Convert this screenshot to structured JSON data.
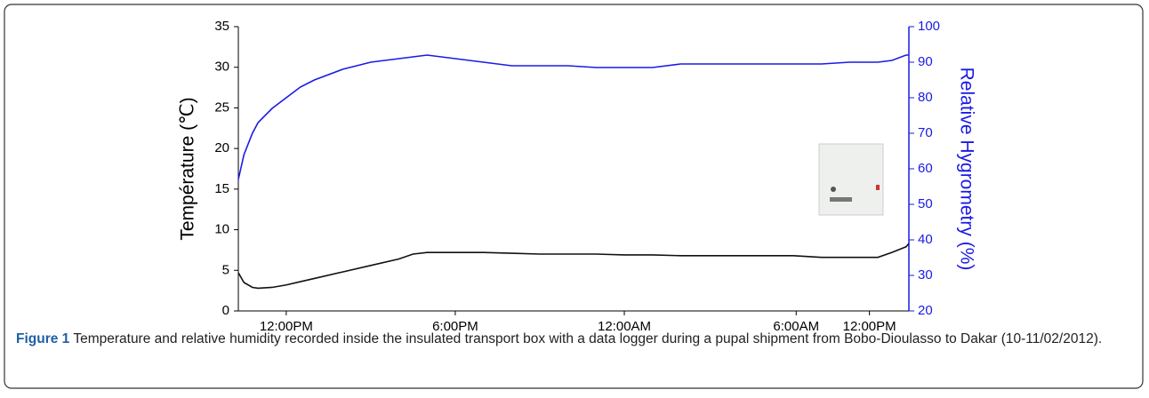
{
  "chart_data": {
    "type": "line",
    "x": [
      10.3,
      10.5,
      10.8,
      11,
      11.5,
      12,
      12.5,
      13,
      14,
      15,
      16,
      16.5,
      17,
      18,
      19,
      20,
      21,
      22,
      23,
      24,
      25,
      26,
      27,
      28,
      29,
      30,
      31,
      32,
      33,
      33.5,
      34,
      34.1
    ],
    "xlim": [
      10.3,
      34.1
    ],
    "xticks": [
      {
        "value": 12,
        "label": "12:00PM"
      },
      {
        "value": 18,
        "label": "6:00PM"
      },
      {
        "value": 24,
        "label": "12:00AM"
      },
      {
        "value": 30.1,
        "label": "6:00AM"
      },
      {
        "value": 32.7,
        "label": "12:00PM"
      }
    ],
    "ylabel": "Température (℃)",
    "y2label": "Relative Hygrometry (%)",
    "ylim": [
      0,
      35
    ],
    "yticks": [
      0,
      5,
      10,
      15,
      20,
      25,
      30,
      35
    ],
    "y2lim": [
      20,
      100
    ],
    "y2ticks": [
      20,
      30,
      40,
      50,
      60,
      70,
      80,
      90,
      100
    ],
    "y2color": "#1a1ae6",
    "series": [
      {
        "color": "#111111",
        "values": [
          4.7,
          3.5,
          2.9,
          2.8,
          2.9,
          3.2,
          3.6,
          4.0,
          4.8,
          5.6,
          6.4,
          7.0,
          7.2,
          7.2,
          7.2,
          7.1,
          7.0,
          7.0,
          7.0,
          6.9,
          6.9,
          6.8,
          6.8,
          6.8,
          6.8,
          6.8,
          6.6,
          6.6,
          6.6,
          7.2,
          7.9,
          8.3
        ]
      },
      {
        "color": "#1a1ae6",
        "axis": "y2",
        "values": [
          57,
          64,
          70,
          73,
          77,
          80,
          83,
          85,
          88,
          90,
          91,
          91.5,
          92,
          91,
          90,
          89,
          89,
          89,
          88.5,
          88.5,
          88.5,
          89.5,
          89.5,
          89.5,
          89.5,
          89.5,
          89.5,
          90,
          90,
          90.5,
          92,
          92
        ]
      }
    ]
  },
  "caption": {
    "label": "Figure 1",
    "text": "Temperature and relative humidity recorded inside the insulated transport box with a data logger during a pupal shipment from Bobo-Dioulasso to Dakar (10-11/02/2012)."
  }
}
